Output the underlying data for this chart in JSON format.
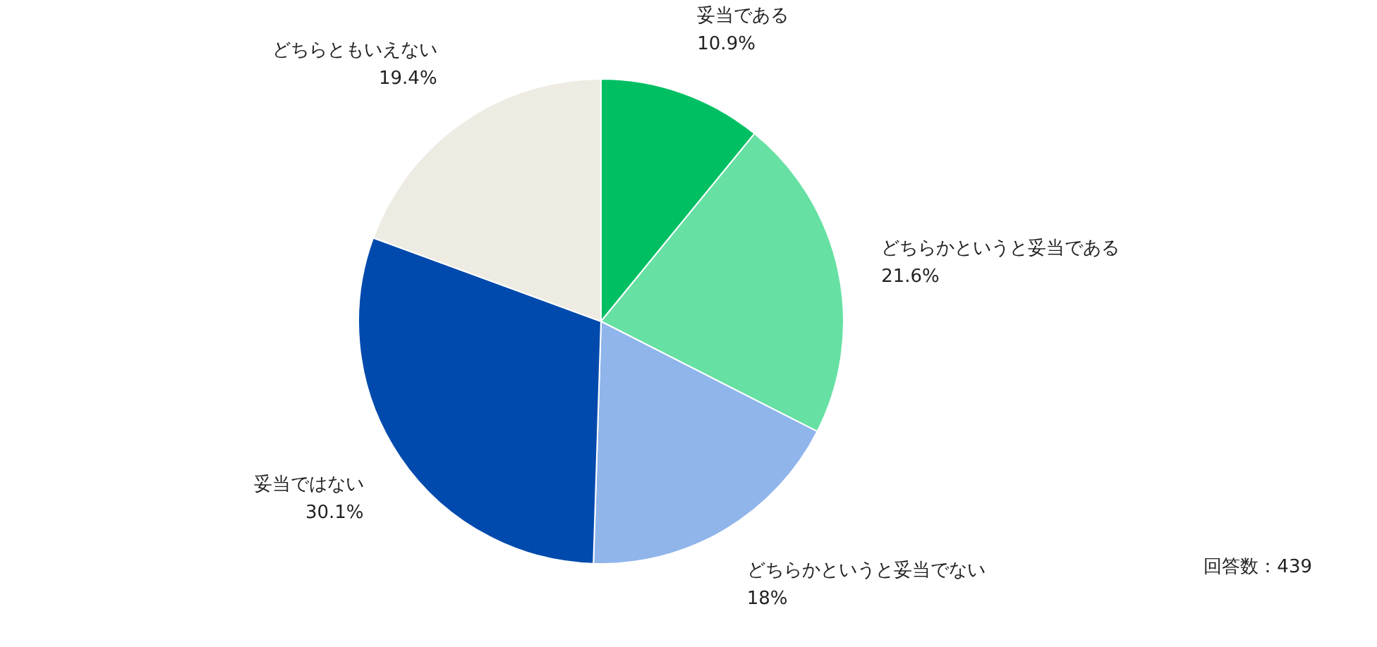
{
  "chart_data": {
    "type": "pie",
    "categories": [
      "妥当である",
      "どちらかというと妥当である",
      "どちらかというと妥当でない",
      "妥当ではない",
      "どちらともいえない"
    ],
    "values": [
      10.9,
      21.6,
      18,
      30.1,
      19.4
    ],
    "value_labels": [
      "10.9%",
      "21.6%",
      "18%",
      "30.1%",
      "19.4%"
    ],
    "colors": [
      "#00bf63",
      "#66e0a3",
      "#8fb5eb",
      "#004aad",
      "#eeebe3"
    ],
    "annotations": [
      "回答数：439"
    ]
  }
}
